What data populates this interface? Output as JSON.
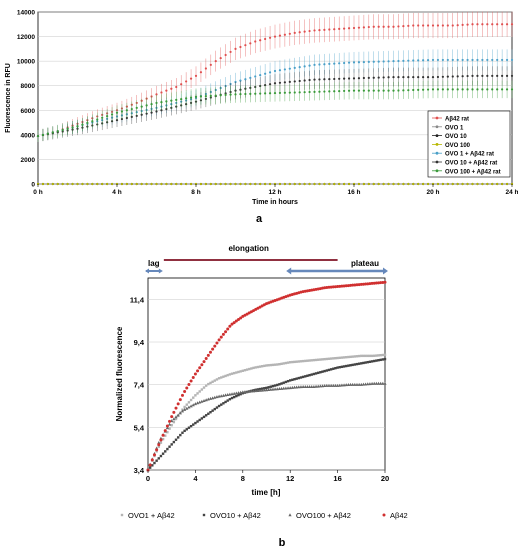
{
  "chart_data": [
    {
      "type": "line",
      "panel_label": "a",
      "xlabel": "Time in hours",
      "ylabel": "Fluorescence in RFU",
      "xlim": [
        0,
        24
      ],
      "ylim": [
        0,
        14000
      ],
      "x_ticks": [
        0,
        4,
        8,
        12,
        16,
        20,
        24
      ],
      "x_tick_labels": [
        "0 h",
        "4 h",
        "8 h",
        "12 h",
        "16 h",
        "20 h",
        "24 h"
      ],
      "y_ticks": [
        0,
        2000,
        4000,
        6000,
        8000,
        10000,
        12000,
        14000
      ],
      "y_tick_labels": [
        "0",
        "2000",
        "4000",
        "6000",
        "8000",
        "10000",
        "12000",
        "14000"
      ],
      "legend_position": "right",
      "series": [
        {
          "name": "Aβ42 rat",
          "color": "#e05050",
          "error_bars": true,
          "points": [
            [
              0,
              3900
            ],
            [
              1,
              4300
            ],
            [
              2,
              4900
            ],
            [
              3,
              5500
            ],
            [
              4,
              6000
            ],
            [
              5,
              6600
            ],
            [
              6,
              7300
            ],
            [
              7,
              7900
            ],
            [
              8,
              8800
            ],
            [
              9,
              10000
            ],
            [
              10,
              11000
            ],
            [
              11,
              11600
            ],
            [
              12,
              12000
            ],
            [
              13,
              12300
            ],
            [
              14,
              12500
            ],
            [
              15,
              12600
            ],
            [
              16,
              12700
            ],
            [
              17,
              12800
            ],
            [
              18,
              12800
            ],
            [
              19,
              12900
            ],
            [
              20,
              12900
            ],
            [
              21,
              12900
            ],
            [
              22,
              13000
            ],
            [
              23,
              13000
            ],
            [
              24,
              13000
            ]
          ]
        },
        {
          "name": "OVO 1",
          "color": "#888888",
          "error_bars": false,
          "points": [
            [
              0,
              0
            ],
            [
              24,
              0
            ]
          ]
        },
        {
          "name": "OVO 10",
          "color": "#222222",
          "error_bars": false,
          "points": [
            [
              0,
              0
            ],
            [
              24,
              0
            ]
          ]
        },
        {
          "name": "OVO 100",
          "color": "#b8b800",
          "error_bars": false,
          "points": [
            [
              0,
              0
            ],
            [
              24,
              0
            ]
          ]
        },
        {
          "name": "OVO 1 + Aβ42 rat",
          "color": "#4aa0c8",
          "error_bars": true,
          "points": [
            [
              0,
              3900
            ],
            [
              2,
              4700
            ],
            [
              4,
              5500
            ],
            [
              6,
              6200
            ],
            [
              8,
              7000
            ],
            [
              10,
              8300
            ],
            [
              12,
              9200
            ],
            [
              14,
              9700
            ],
            [
              16,
              9900
            ],
            [
              18,
              10000
            ],
            [
              20,
              10100
            ],
            [
              22,
              10100
            ],
            [
              24,
              10100
            ]
          ]
        },
        {
          "name": "OVO 10 + Aβ42 rat",
          "color": "#333333",
          "error_bars": true,
          "points": [
            [
              0,
              3900
            ],
            [
              2,
              4500
            ],
            [
              4,
              5200
            ],
            [
              6,
              5900
            ],
            [
              8,
              6700
            ],
            [
              10,
              7600
            ],
            [
              12,
              8200
            ],
            [
              14,
              8500
            ],
            [
              16,
              8600
            ],
            [
              18,
              8700
            ],
            [
              20,
              8700
            ],
            [
              22,
              8800
            ],
            [
              24,
              8800
            ]
          ]
        },
        {
          "name": "OVO 100 + Aβ42 rat",
          "color": "#3a9a3a",
          "error_bars": true,
          "points": [
            [
              0,
              3900
            ],
            [
              2,
              4700
            ],
            [
              4,
              5800
            ],
            [
              6,
              6600
            ],
            [
              8,
              7100
            ],
            [
              10,
              7300
            ],
            [
              12,
              7400
            ],
            [
              14,
              7500
            ],
            [
              16,
              7600
            ],
            [
              18,
              7600
            ],
            [
              20,
              7700
            ],
            [
              22,
              7700
            ],
            [
              24,
              7700
            ]
          ]
        }
      ]
    },
    {
      "type": "scatter",
      "panel_label": "b",
      "xlabel": "time [h]",
      "ylabel": "Normalized fluorescence",
      "xlim": [
        0,
        20
      ],
      "ylim": [
        3.4,
        12.4
      ],
      "x_ticks": [
        0,
        4,
        8,
        12,
        16,
        20
      ],
      "x_tick_labels": [
        "0",
        "4",
        "8",
        "12",
        "16",
        "20"
      ],
      "y_ticks": [
        3.4,
        5.4,
        7.4,
        9.4,
        11.4
      ],
      "y_tick_labels": [
        "3,4",
        "5,4",
        "7,4",
        "9,4",
        "11,4"
      ],
      "legend_position": "bottom",
      "phases": [
        {
          "label": "lag",
          "start": 0,
          "end": 1
        },
        {
          "label": "elongation",
          "start": 1,
          "end": 16
        },
        {
          "label": "plateau",
          "start": 12,
          "end": 20
        }
      ],
      "series": [
        {
          "name": "OVO1 + Aβ42",
          "color": "#b4b4b4",
          "marker": "square",
          "points": [
            [
              0,
              3.4
            ],
            [
              1,
              4.6
            ],
            [
              2,
              5.5
            ],
            [
              3,
              6.3
            ],
            [
              4,
              6.9
            ],
            [
              5,
              7.4
            ],
            [
              6,
              7.7
            ],
            [
              7,
              7.9
            ],
            [
              8,
              8.05
            ],
            [
              9,
              8.2
            ],
            [
              10,
              8.3
            ],
            [
              11,
              8.35
            ],
            [
              12,
              8.45
            ],
            [
              13,
              8.5
            ],
            [
              14,
              8.55
            ],
            [
              15,
              8.6
            ],
            [
              16,
              8.65
            ],
            [
              17,
              8.7
            ],
            [
              18,
              8.75
            ],
            [
              19,
              8.75
            ],
            [
              20,
              8.8
            ]
          ]
        },
        {
          "name": "OVO10 + Aβ42",
          "color": "#444444",
          "marker": "square",
          "points": [
            [
              0,
              3.4
            ],
            [
              1,
              4.0
            ],
            [
              2,
              4.6
            ],
            [
              3,
              5.2
            ],
            [
              4,
              5.6
            ],
            [
              5,
              6.0
            ],
            [
              6,
              6.4
            ],
            [
              7,
              6.75
            ],
            [
              8,
              7.0
            ],
            [
              9,
              7.15
            ],
            [
              10,
              7.25
            ],
            [
              11,
              7.4
            ],
            [
              12,
              7.6
            ],
            [
              13,
              7.75
            ],
            [
              14,
              7.9
            ],
            [
              15,
              8.05
            ],
            [
              16,
              8.2
            ],
            [
              17,
              8.3
            ],
            [
              18,
              8.4
            ],
            [
              19,
              8.5
            ],
            [
              20,
              8.6
            ]
          ]
        },
        {
          "name": "OVO100 + Aβ42",
          "color": "#666666",
          "marker": "triangle",
          "points": [
            [
              0,
              3.4
            ],
            [
              1,
              4.8
            ],
            [
              2,
              5.7
            ],
            [
              3,
              6.2
            ],
            [
              4,
              6.5
            ],
            [
              5,
              6.7
            ],
            [
              6,
              6.85
            ],
            [
              7,
              6.95
            ],
            [
              8,
              7.05
            ],
            [
              9,
              7.1
            ],
            [
              10,
              7.15
            ],
            [
              11,
              7.2
            ],
            [
              12,
              7.25
            ],
            [
              13,
              7.3
            ],
            [
              14,
              7.3
            ],
            [
              15,
              7.35
            ],
            [
              16,
              7.35
            ],
            [
              17,
              7.4
            ],
            [
              18,
              7.4
            ],
            [
              19,
              7.45
            ],
            [
              20,
              7.45
            ]
          ]
        },
        {
          "name": "Aβ42",
          "color": "#d03030",
          "marker": "circle",
          "points": [
            [
              0,
              3.4
            ],
            [
              1,
              4.7
            ],
            [
              2,
              5.9
            ],
            [
              3,
              7.0
            ],
            [
              4,
              7.9
            ],
            [
              5,
              8.7
            ],
            [
              6,
              9.5
            ],
            [
              7,
              10.2
            ],
            [
              8,
              10.6
            ],
            [
              9,
              10.9
            ],
            [
              10,
              11.2
            ],
            [
              11,
              11.4
            ],
            [
              12,
              11.6
            ],
            [
              13,
              11.75
            ],
            [
              14,
              11.85
            ],
            [
              15,
              11.95
            ],
            [
              16,
              12.0
            ],
            [
              17,
              12.05
            ],
            [
              18,
              12.1
            ],
            [
              19,
              12.15
            ],
            [
              20,
              12.2
            ]
          ]
        }
      ]
    }
  ]
}
